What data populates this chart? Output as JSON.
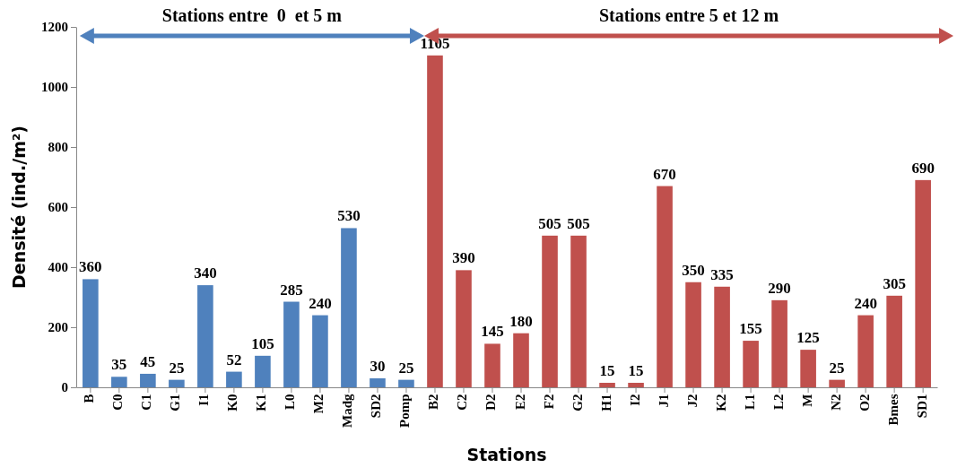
{
  "chart_data": {
    "type": "bar",
    "xlabel": "Stations",
    "ylabel": "Densité (ind./m²)",
    "categories": [
      "B",
      "C0",
      "C1",
      "G1",
      "I1",
      "K0",
      "K1",
      "L0",
      "M2",
      "Madg",
      "SD2",
      "Pomp",
      "B2",
      "C2",
      "D2",
      "E2",
      "F2",
      "G2",
      "H1",
      "I2",
      "J1",
      "J2",
      "K2",
      "L1",
      "L2",
      "M",
      "N2",
      "O2",
      "Bmes",
      "SD1"
    ],
    "values": [
      360,
      35,
      45,
      25,
      340,
      52,
      105,
      285,
      240,
      530,
      30,
      25,
      1105,
      390,
      145,
      180,
      505,
      505,
      15,
      15,
      670,
      350,
      335,
      155,
      290,
      125,
      25,
      240,
      305,
      690
    ],
    "colors": [
      "#4f81bd",
      "#4f81bd",
      "#4f81bd",
      "#4f81bd",
      "#4f81bd",
      "#4f81bd",
      "#4f81bd",
      "#4f81bd",
      "#4f81bd",
      "#4f81bd",
      "#4f81bd",
      "#4f81bd",
      "#c0504d",
      "#c0504d",
      "#c0504d",
      "#c0504d",
      "#c0504d",
      "#c0504d",
      "#c0504d",
      "#c0504d",
      "#c0504d",
      "#c0504d",
      "#c0504d",
      "#c0504d",
      "#c0504d",
      "#c0504d",
      "#c0504d",
      "#c0504d",
      "#c0504d",
      "#c0504d"
    ],
    "ylim": [
      0,
      1200
    ],
    "yticks": [
      0,
      200,
      400,
      600,
      800,
      1000,
      1200
    ],
    "data_labels": true,
    "grid": false,
    "annotations": [
      "Stations entre  0  et 5 m",
      "Stations entre 5 et 12 m"
    ]
  }
}
